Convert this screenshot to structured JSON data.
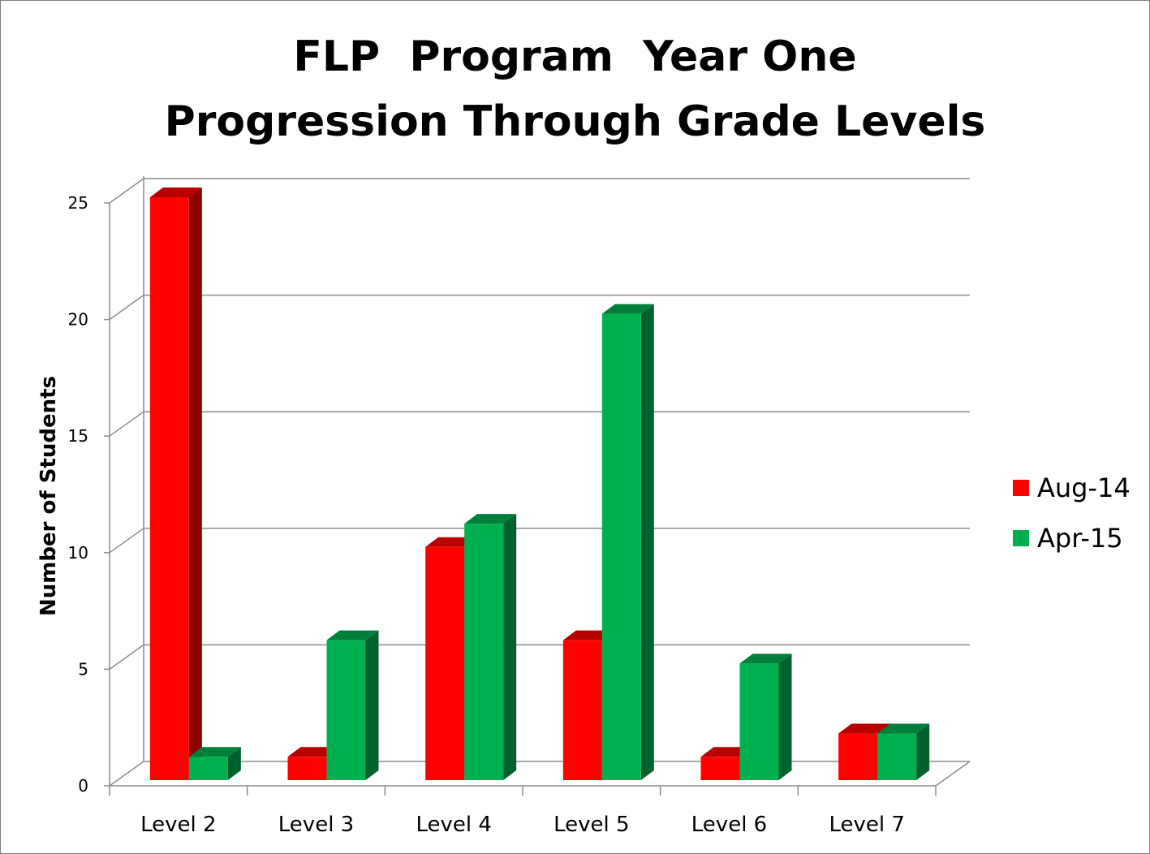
{
  "chart_data": {
    "type": "bar",
    "title_line1": "FLP  Program  Year One",
    "title_line2": "Progression Through Grade Levels",
    "xlabel": "",
    "ylabel": "Number of Students",
    "categories": [
      "Level 2",
      "Level 3",
      "Level 4",
      "Level 5",
      "Level 6",
      "Level 7"
    ],
    "series": [
      {
        "name": "Aug-14",
        "color": "#ff0000",
        "values": [
          25,
          1,
          10,
          6,
          1,
          2
        ]
      },
      {
        "name": "Apr-15",
        "color": "#00b050",
        "values": [
          1,
          6,
          11,
          20,
          5,
          2
        ]
      }
    ],
    "ylim": [
      0,
      25
    ],
    "yticks": [
      0,
      5,
      10,
      15,
      20,
      25
    ],
    "grid": true,
    "three_d": true,
    "legend_position": "right"
  }
}
